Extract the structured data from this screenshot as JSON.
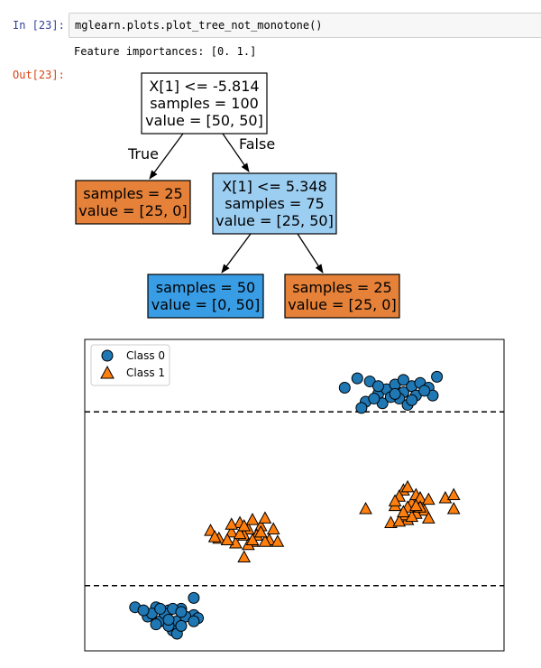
{
  "cell": {
    "in_prompt": "In [23]:",
    "code": "mglearn.plots.plot_tree_not_monotone()",
    "stdout": "Feature importances: [0. 1.]",
    "out_prompt": "Out[23]:"
  },
  "tree": {
    "nodes": [
      {
        "id": "root",
        "lines": [
          "X[1] <= -5.814",
          "samples = 100",
          "value = [50, 50]"
        ],
        "fill": "#ffffff"
      },
      {
        "id": "left_leaf",
        "lines": [
          "samples = 25",
          "value = [25, 0]"
        ],
        "fill": "#e58139"
      },
      {
        "id": "split2",
        "lines": [
          "X[1] <= 5.348",
          "samples = 75",
          "value = [25, 50]"
        ],
        "fill": "#9ccef2"
      },
      {
        "id": "leaf_blue",
        "lines": [
          "samples = 50",
          "value = [0, 50]"
        ],
        "fill": "#399de5"
      },
      {
        "id": "leaf_orange",
        "lines": [
          "samples = 25",
          "value = [25, 0]"
        ],
        "fill": "#e58139"
      }
    ],
    "edge_labels": {
      "true": "True",
      "false": "False"
    }
  },
  "chart_data": {
    "type": "scatter",
    "xlim": [
      0,
      10
    ],
    "ylim": [
      -10,
      10
    ],
    "grid": false,
    "legend_position": "top-left",
    "hlines": [
      -5.814,
      5.348
    ],
    "hline_style": "dashed",
    "colors": {
      "class0": "#1f77b4",
      "class1": "#ff7f0e"
    },
    "series": [
      {
        "name": "Class 0",
        "marker": "circle",
        "points": [
          [
            6.2,
            6.9
          ],
          [
            6.5,
            7.5
          ],
          [
            6.8,
            7.3
          ],
          [
            7.0,
            6.5
          ],
          [
            7.2,
            6.8
          ],
          [
            7.4,
            7.1
          ],
          [
            7.6,
            6.6
          ],
          [
            7.8,
            7.0
          ],
          [
            8.0,
            7.2
          ],
          [
            8.2,
            6.9
          ],
          [
            8.3,
            6.4
          ],
          [
            6.7,
            6.0
          ],
          [
            7.1,
            5.9
          ],
          [
            7.5,
            6.2
          ],
          [
            7.7,
            5.8
          ],
          [
            8.4,
            7.6
          ],
          [
            7.9,
            6.4
          ],
          [
            7.3,
            6.3
          ],
          [
            6.9,
            6.2
          ],
          [
            7.6,
            7.4
          ],
          [
            8.1,
            6.7
          ],
          [
            7.0,
            7.0
          ],
          [
            7.4,
            6.5
          ],
          [
            7.8,
            6.1
          ],
          [
            6.6,
            5.6
          ],
          [
            1.2,
            -7.2
          ],
          [
            1.5,
            -7.8
          ],
          [
            1.7,
            -7.2
          ],
          [
            2.0,
            -7.4
          ],
          [
            2.3,
            -7.3
          ],
          [
            2.6,
            -6.6
          ],
          [
            2.6,
            -7.7
          ],
          [
            1.9,
            -7.9
          ],
          [
            2.2,
            -8.1
          ],
          [
            2.4,
            -7.8
          ],
          [
            2.1,
            -8.7
          ],
          [
            1.8,
            -8.1
          ],
          [
            1.6,
            -7.6
          ],
          [
            2.0,
            -8.4
          ],
          [
            2.2,
            -8.9
          ],
          [
            2.3,
            -8.4
          ],
          [
            2.7,
            -7.9
          ],
          [
            1.4,
            -7.4
          ],
          [
            1.9,
            -7.6
          ],
          [
            2.1,
            -7.3
          ],
          [
            2.0,
            -8.0
          ],
          [
            1.7,
            -8.3
          ],
          [
            2.3,
            -7.5
          ],
          [
            2.6,
            -8.1
          ],
          [
            1.8,
            -7.3
          ]
        ]
      },
      {
        "name": "Class 1",
        "marker": "triangle",
        "points": [
          [
            3.0,
            -2.3
          ],
          [
            3.2,
            -2.8
          ],
          [
            3.5,
            -2.4
          ],
          [
            3.7,
            -1.8
          ],
          [
            3.9,
            -2.2
          ],
          [
            4.0,
            -3.0
          ],
          [
            4.2,
            -2.0
          ],
          [
            4.1,
            -2.6
          ],
          [
            4.3,
            -1.5
          ],
          [
            4.4,
            -2.9
          ],
          [
            3.8,
            -2.6
          ],
          [
            3.6,
            -3.1
          ],
          [
            4.5,
            -2.2
          ],
          [
            3.4,
            -2.9
          ],
          [
            4.0,
            -1.6
          ],
          [
            4.3,
            -3.0
          ],
          [
            3.9,
            -3.2
          ],
          [
            3.5,
            -1.9
          ],
          [
            4.2,
            -2.4
          ],
          [
            4.6,
            -3.0
          ],
          [
            3.7,
            -2.5
          ],
          [
            3.1,
            -2.7
          ],
          [
            4.0,
            -2.9
          ],
          [
            3.8,
            -2.0
          ],
          [
            3.8,
            -4.0
          ],
          [
            6.7,
            -0.9
          ],
          [
            7.4,
            -0.7
          ],
          [
            7.6,
            0.3
          ],
          [
            7.8,
            -0.5
          ],
          [
            7.9,
            0.0
          ],
          [
            8.0,
            -0.2
          ],
          [
            8.1,
            -1.0
          ],
          [
            7.7,
            -1.6
          ],
          [
            7.5,
            -0.1
          ],
          [
            7.9,
            -1.2
          ],
          [
            7.3,
            -1.8
          ],
          [
            7.6,
            -1.3
          ],
          [
            8.2,
            -0.3
          ],
          [
            8.6,
            -0.2
          ],
          [
            8.8,
            0.0
          ],
          [
            8.8,
            -0.9
          ],
          [
            7.7,
            0.5
          ],
          [
            7.8,
            -1.4
          ],
          [
            8.0,
            -0.8
          ],
          [
            7.5,
            -1.7
          ],
          [
            7.7,
            -0.8
          ],
          [
            7.4,
            -0.4
          ],
          [
            8.2,
            -1.5
          ],
          [
            7.9,
            -0.7
          ],
          [
            7.6,
            -1.1
          ]
        ]
      }
    ]
  }
}
